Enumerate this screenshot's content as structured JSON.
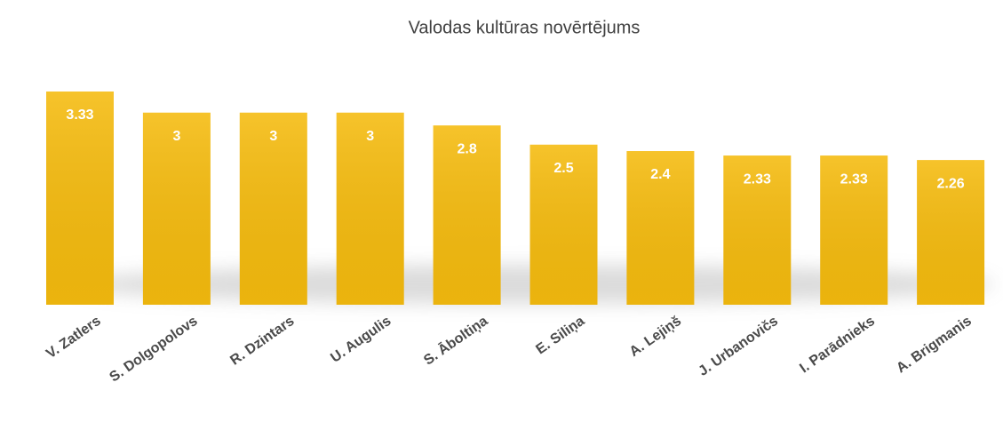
{
  "chart_data": {
    "type": "bar",
    "title": "Valodas kultūras novērtējums",
    "categories": [
      "V. Zatlers",
      "S. Dolgopolovs",
      "R. Dzintars",
      "U. Augulis",
      "S. Āboltiņa",
      "E. Siliņa",
      "A. Lejiņš",
      "J. Urbanovičs",
      "I. Parādnieks",
      "A. Brigmanis"
    ],
    "values": [
      3.33,
      3,
      3,
      3,
      2.8,
      2.5,
      2.4,
      2.33,
      2.33,
      2.26
    ],
    "color": "#f5bb0e"
  }
}
